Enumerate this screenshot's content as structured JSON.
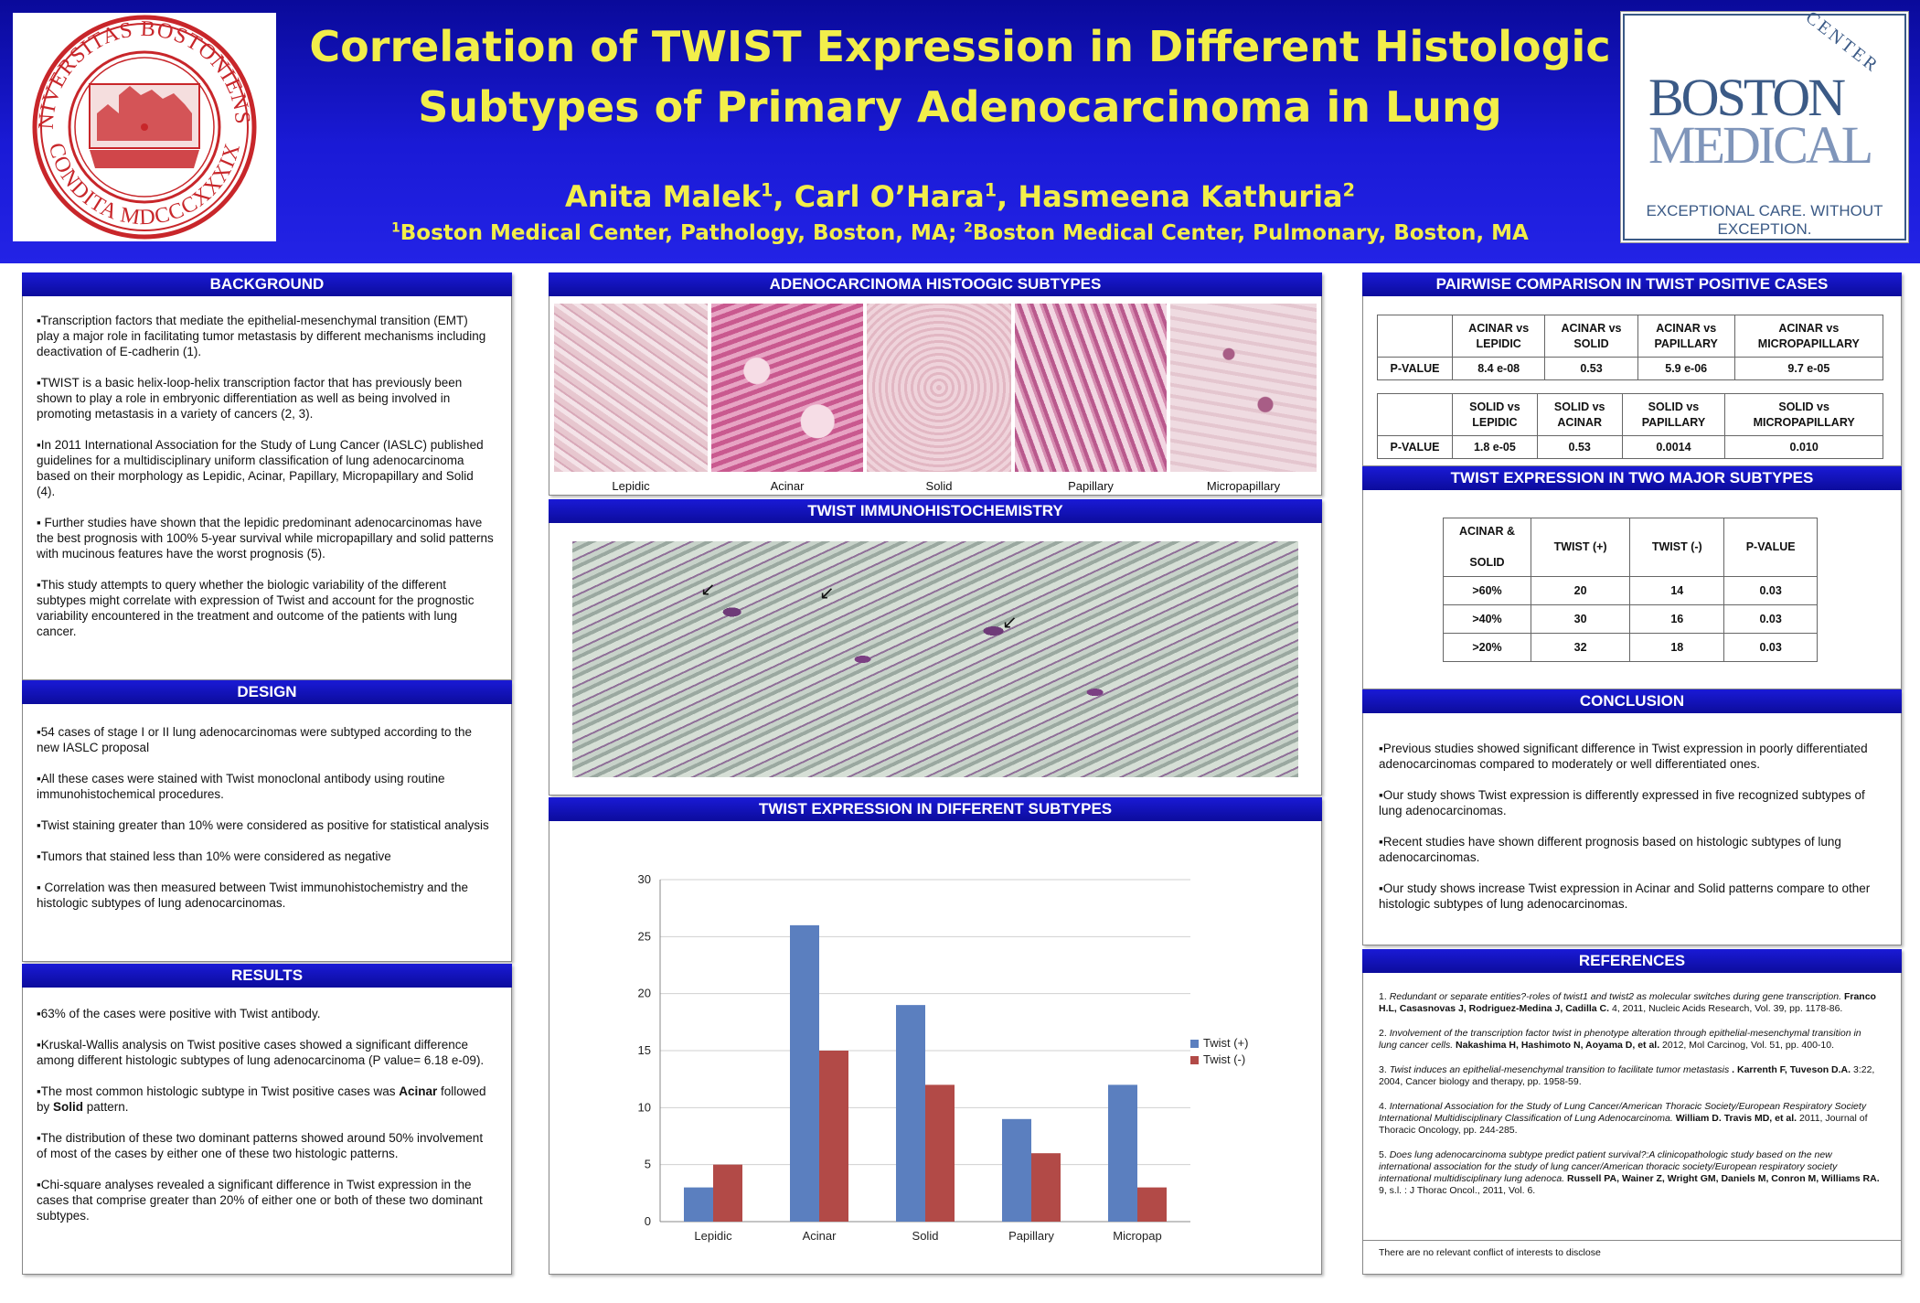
{
  "header": {
    "title_line1": "Correlation of TWIST Expression in Different Histologic",
    "title_line2": "Subtypes of Primary Adenocarcinoma in Lung",
    "authors": [
      {
        "name": "Anita Malek",
        "sup": "1"
      },
      {
        "name": "Carl O’Hara",
        "sup": "1"
      },
      {
        "name": "Hasmeena Kathuria",
        "sup": "2"
      }
    ],
    "affiliations": [
      {
        "sup": "1",
        "text": "Boston Medical Center, Pathology, Boston, MA; "
      },
      {
        "sup": "2",
        "text": "Boston Medical Center, Pulmonary, Boston, MA"
      }
    ]
  },
  "logo_left": {
    "text_top": "UNIVERSITAS BOSTONIENSIS",
    "text_bottom": "CONDITA MDCCCXXXIX"
  },
  "logo_right": {
    "center": "CENTER",
    "boston": "BOSTON",
    "medical": "MEDICAL",
    "tagline": "EXCEPTIONAL CARE. WITHOUT EXCEPTION."
  },
  "background": {
    "heading": "BACKGROUND",
    "paragraphs": [
      "▪Transcription factors that mediate the epithelial-mesenchymal transition (EMT) play a major role in facilitating tumor metastasis by different mechanisms including deactivation of E-cadherin (1).",
      "▪TWIST is a basic helix-loop-helix transcription factor that has previously been shown to play a role in embryonic differentiation as well as being involved in promoting metastasis in a variety of cancers (2, 3).",
      "▪In 2011 International Association for the Study of Lung Cancer (IASLC) published guidelines for a multidisciplinary uniform classification of lung adenocarcinoma based on their morphology as Lepidic, Acinar, Papillary, Micropapillary and Solid (4).",
      "▪ Further studies have shown that the lepidic predominant adenocarcinomas have the best prognosis with 100% 5-year survival while micropapillary and solid patterns with mucinous features have the worst prognosis (5).",
      "▪This study attempts to query whether the biologic variability of the different subtypes might correlate with expression of Twist and account for the prognostic variability encountered in the treatment and outcome of the patients with lung cancer."
    ]
  },
  "design": {
    "heading": "DESIGN",
    "paragraphs": [
      "▪54 cases of stage I or II lung adenocarcinomas were subtyped according to the new IASLC proposal",
      "▪All these cases were stained with Twist monoclonal antibody using routine immunohistochemical procedures.",
      "▪Twist staining greater than 10% were considered as positive for statistical analysis",
      "▪Tumors that stained less than 10% were considered as negative",
      "▪ Correlation was then measured between Twist immunohistochemistry and the histologic subtypes of lung adenocarcinomas."
    ]
  },
  "results": {
    "heading": "RESULTS",
    "p1": "▪63% of the cases were positive with Twist antibody.",
    "p2": "▪Kruskal-Wallis analysis on Twist positive cases showed a significant difference among different histologic subtypes of lung adenocarcinoma (P value= 6.18 e-09).",
    "p3_pre": "▪The most common histologic subtype in Twist positive cases was ",
    "p3_b1": "Acinar",
    "p3_mid": " followed by ",
    "p3_b2": "Solid",
    "p3_post": " pattern.",
    "p4": "▪The distribution of these two dominant patterns showed around 50% involvement of most of the cases by either one of these two histologic patterns.",
    "p5": "▪Chi-square analyses revealed a significant difference in Twist expression in the cases that comprise greater than 20% of either one or both of these two dominant subtypes."
  },
  "histo": {
    "heading": "ADENOCARCINOMA HISTOOGIC SUBTYPES",
    "captions": [
      "Lepidic",
      "Acinar",
      "Solid",
      "Papillary",
      "Micropapillary"
    ]
  },
  "ihc": {
    "heading": "TWIST IMMUNOHISTOCHEMISTRY"
  },
  "expr_chart": {
    "heading": "TWIST EXPRESSION IN DIFFERENT SUBTYPES"
  },
  "chart_data": {
    "type": "bar",
    "title": "",
    "xlabel": "",
    "ylabel": "",
    "categories": [
      "Lepidic",
      "Acinar",
      "Solid",
      "Papillary",
      "Micropap"
    ],
    "series": [
      {
        "name": "Twist (+)",
        "values": [
          3,
          26,
          19,
          9,
          12
        ],
        "color": "#5b7fbf"
      },
      {
        "name": "Twist (-)",
        "values": [
          5,
          15,
          12,
          6,
          3
        ],
        "color": "#b24a47"
      }
    ],
    "ylim": [
      0,
      30
    ],
    "yticks": [
      "0",
      "5",
      "10",
      "15",
      "20",
      "25",
      "30"
    ],
    "grid": true,
    "legend": "right"
  },
  "pairwise": {
    "heading": "PAIRWISE COMPARISON IN TWIST POSITIVE CASES",
    "row_label": "P-VALUE",
    "table1": {
      "headers": [
        [
          "ACINAR  vs",
          "LEPIDIC"
        ],
        [
          "ACINAR vs",
          "SOLID"
        ],
        [
          "ACINAR vs",
          "PAPILLARY"
        ],
        [
          "ACINAR vs",
          "MICROPAPILLARY"
        ]
      ],
      "values": [
        "8.4 e-08",
        "0.53",
        "5.9 e-06",
        "9.7 e-05"
      ]
    },
    "table2": {
      "headers": [
        [
          "SOLID  vs",
          "LEPIDIC"
        ],
        [
          "SOLID vs",
          "ACINAR"
        ],
        [
          "SOLID vs",
          "PAPILLARY"
        ],
        [
          "SOLID vs",
          "MICROPAPILLARY"
        ]
      ],
      "values": [
        "1.8 e-05",
        "0.53",
        "0.0014",
        "0.010"
      ]
    }
  },
  "major": {
    "heading": "TWIST EXPRESSION IN TWO MAJOR SUBTYPES",
    "corner_line1": "ACINAR &",
    "corner_line2": "SOLID",
    "headers": [
      "TWIST (+)",
      "TWIST (-)",
      "P-VALUE"
    ],
    "rows": [
      {
        "label": ">60%",
        "pos": "20",
        "neg": "14",
        "p": "0.03"
      },
      {
        "label": ">40%",
        "pos": "30",
        "neg": "16",
        "p": "0.03"
      },
      {
        "label": ">20%",
        "pos": "32",
        "neg": "18",
        "p": "0.03"
      }
    ]
  },
  "conclusion": {
    "heading": "CONCLUSION",
    "paragraphs": [
      "▪Previous studies showed significant difference in Twist expression in poorly differentiated adenocarcinomas compared to moderately or well differentiated ones.",
      "▪Our study shows Twist expression is differently expressed in five recognized subtypes of lung adenocarcinomas.",
      "▪Recent studies have shown different prognosis based on histologic subtypes of lung adenocarcinomas.",
      "▪Our study shows increase Twist expression in Acinar and Solid patterns compare to other histologic subtypes of lung adenocarcinomas."
    ]
  },
  "references": {
    "heading": "REFERENCES",
    "items": [
      {
        "num": "1. ",
        "title": "Redundant or separate entities?-roles of twist1 and twist2 as molecular switches during gene transcription.",
        "authors": " Franco H.L, Casasnovas J, Rodriguez-Medina J, Cadilla C.",
        "rest": " 4, 2011, Nucleic Acids Research, Vol. 39, pp. 1178-86."
      },
      {
        "num": "2. ",
        "title": "Involvement of the transcription factor twist in phenotype alteration through epithelial-mesenchymal transition in lung cancer cells.",
        "authors": " Nakashima H, Hashimoto N, Aoyama D, et al.",
        "rest": " 2012, Mol Carcinog, Vol. 51, pp. 400-10."
      },
      {
        "num": "3. ",
        "title": "Twist induces an epithelial-mesenchymal transition to facilitate tumor metastasis",
        "authors": " . Karrenth F, Tuveson D.A.",
        "rest": " 3:22, 2004, Cancer biology and therapy, pp. 1958-59."
      },
      {
        "num": "4. ",
        "title": "International Association for the Study of Lung Cancer/American Thoracic Society/European Respiratory Society International Multidisciplinary Classification of Lung Adenocarcinoma.",
        "authors": " William D. Travis MD, et al.",
        "rest": " 2011, Journal of Thoracic Oncology, pp. 244-285."
      },
      {
        "num": "5. ",
        "title": "Does lung adenocarcinoma subtype predict patient survival?:A clinicopathologic study based on the new international association for the study of lung cancer/American thoracic society/European respiratory society international multidisciplinary lung adenoca.",
        "authors": " Russell PA, Wainer Z, Wright GM, Daniels M, Conron M, Williams RA.",
        "rest": " 9, s.l. : J Thorac Oncol., 2011, Vol. 6."
      }
    ],
    "conflict": "There are no relevant conflict of interests to disclose"
  }
}
